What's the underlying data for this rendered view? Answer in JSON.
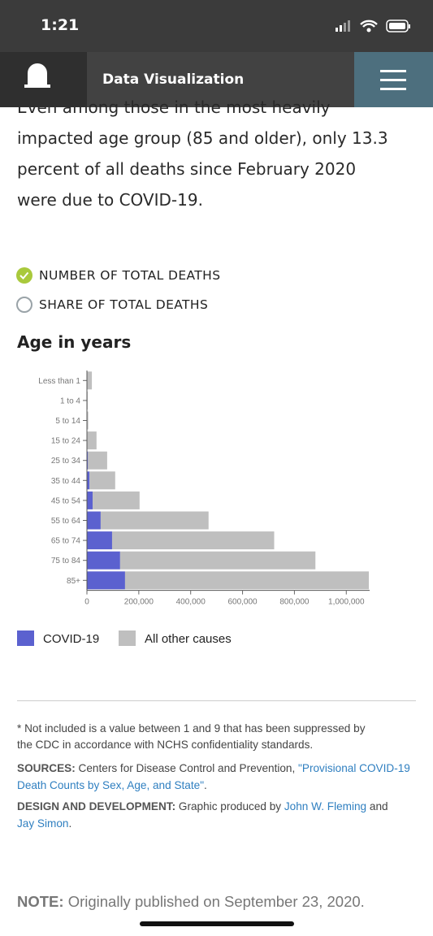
{
  "status_bar": {
    "time": "1:21"
  },
  "nav": {
    "title": "Data Visualization"
  },
  "intro": {
    "lines": [
      "Even among those in the most heavily",
      "impacted age group (85 and older), only 13.3",
      "percent of all deaths since February 2020",
      "were due to COVID-19."
    ]
  },
  "options": [
    "NUMBER OF TOTAL DEATHS",
    "SHARE OF TOTAL DEATHS"
  ],
  "chart_data": {
    "type": "stacked_bar_horizontal",
    "title": "Age in years",
    "categories": [
      "Less than 1",
      "1 to 4",
      "5 to 14",
      "15 to 24",
      "25 to 34",
      "35 to 44",
      "45 to 54",
      "55 to 64",
      "65 to 74",
      "75 to 84",
      "85+"
    ],
    "series": [
      {
        "name": "COVID-19",
        "color": "#5b61cf",
        "values": [
          30,
          10,
          20,
          1000,
          4000,
          10000,
          22000,
          53000,
          97000,
          128000,
          147000
        ]
      },
      {
        "name": "All other causes",
        "color": "#bfbfbf",
        "values": [
          19000,
          3000,
          5000,
          36000,
          74000,
          99000,
          181000,
          416000,
          625000,
          753000,
          940000
        ]
      }
    ],
    "xlim": [
      0,
      1090000
    ],
    "xticks": [
      0,
      {
        "value": 200000,
        "label": "200,000"
      },
      {
        "value": 400000,
        "label": "400,000"
      },
      {
        "value": 600000,
        "label": "600,000"
      },
      {
        "value": 800000,
        "label": "800,000"
      },
      {
        "value": 1000000,
        "label": "1,000,000"
      }
    ],
    "grid": false
  },
  "notes": {
    "footnote": [
      "* Not included is a value between 1 and 9 that has been suppressed by",
      "the CDC in accordance with NCHS confidentiality standards."
    ],
    "sources": {
      "label": "SOURCES:",
      "text": " Centers for Disease Control and Prevention, ",
      "link": "\"Provisional COVID-19 Death Counts by Sex, Age, and State\"",
      "end": "."
    },
    "credits": {
      "label": "DESIGN AND DEVELOPMENT:",
      "text": " Graphic produced by ",
      "link1": "John W. Fleming",
      "mid": " and ",
      "link2": "Jay Simon",
      "end": "."
    }
  },
  "note": {
    "label": "NOTE:",
    "text": " Originally published on September 23, 2020."
  }
}
